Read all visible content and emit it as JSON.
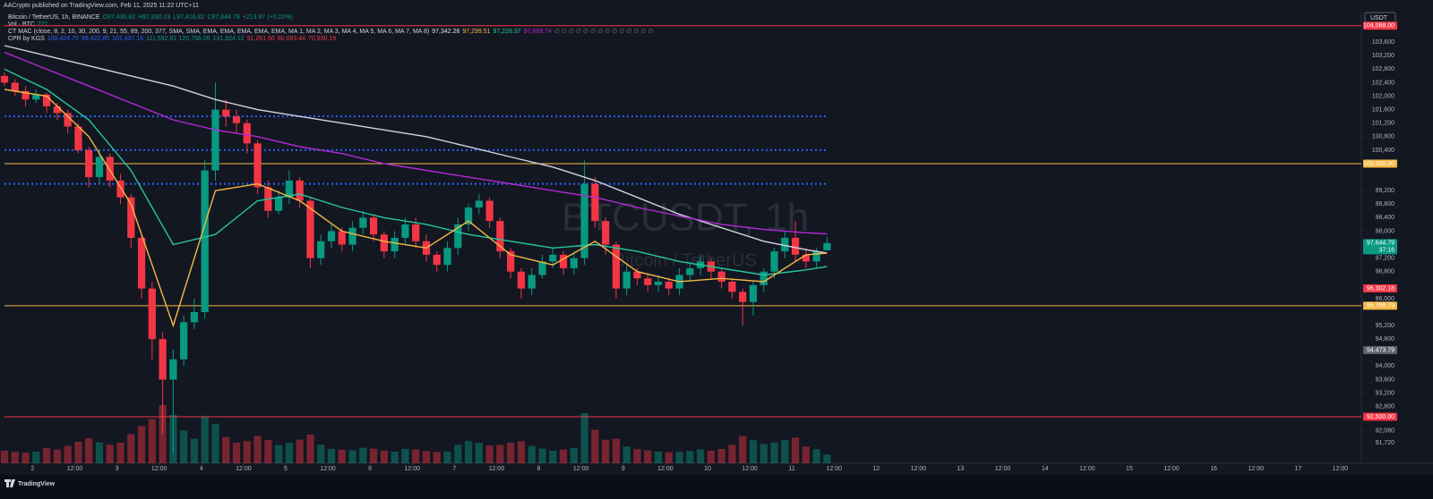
{
  "header": {
    "publisher": "AACrypto published on TradingView.com, Feb 11, 2025 11:22 UTC+11",
    "brand": "TradingView",
    "currency": "USDT"
  },
  "chart_data": {
    "type": "candlestick",
    "symbol": "Bitcoin / TetherUS, 1h, BINANCE",
    "ohlc_text": [
      "O97,430.82",
      "H97,830.19",
      "L97,416.82",
      "C97,644.79",
      "+213.97 (+0.22%)"
    ],
    "volume_label": "Vol · BTC",
    "volume_last": 221,
    "indicators": [
      {
        "name": "CT MAC (close, 8, 2, 10, 30, 200, 9, 21, 55, 89, 200, 377, SMA, SMA, EMA, EMA, EMA, EMA, EMA, MA 1, MA 2, MA 3, MA 4, MA 5, MA 6, MA 7, MA 8)",
        "readouts": [
          "97,342.26",
          "97,299.51",
          "97,226.37",
          "97,669.74",
          "∅ ∅ ∅ ∅ ∅ ∅ ∅ ∅ ∅ ∅ ∅ ∅ ∅ ∅"
        ],
        "readout_colors": [
          "#e0e3eb",
          "#f5b843",
          "#26c6a0",
          "#c026d3",
          "#6a6d78"
        ]
      },
      {
        "name": "CPR by KGS",
        "readouts": [
          "100,424.75",
          "99,422.85",
          "101,437.16",
          "111,592.81",
          "120,756.06",
          "131,924.12",
          "91,261.50",
          "80,093.44",
          "70,930.19"
        ],
        "readout_colors": [
          "#2962ff",
          "#2962ff",
          "#2962ff",
          "#089981",
          "#089981",
          "#089981",
          "#f23645",
          "#f23645",
          "#f23645"
        ]
      }
    ],
    "watermark": [
      "BTCUSDT, 1h",
      "Bitcoin / TetherUS"
    ],
    "up_color": "#089981",
    "down_color": "#f23645",
    "x": [
      -8,
      -5,
      -2,
      1,
      4,
      7,
      10,
      13,
      16,
      19,
      22,
      25,
      28,
      31,
      34,
      37,
      40,
      43,
      46,
      49,
      52,
      55,
      58,
      61,
      64,
      67,
      70,
      73,
      76,
      79,
      82,
      85,
      88,
      91,
      94,
      97,
      100,
      103,
      106,
      109,
      112,
      115,
      118,
      121,
      124,
      127,
      130,
      133,
      136,
      139,
      142,
      145,
      148,
      151,
      154,
      157,
      160,
      163,
      166,
      169,
      172,
      175,
      178,
      181,
      184,
      187,
      190,
      193,
      196,
      199,
      202,
      205,
      208,
      211,
      214,
      217,
      220,
      223,
      226
    ],
    "open": [
      102600,
      102400,
      102150,
      101900,
      102050,
      101700,
      101500,
      101100,
      100400,
      99600,
      100200,
      99500,
      99000,
      97800,
      96300,
      94800,
      93600,
      94200,
      95300,
      95600,
      99800,
      101600,
      101400,
      101200,
      100600,
      99300,
      98600,
      99000,
      99500,
      98900,
      97200,
      97700,
      98000,
      97600,
      98100,
      98400,
      97900,
      97400,
      97800,
      98200,
      97700,
      97300,
      97000,
      97500,
      98200,
      98700,
      98900,
      98300,
      97400,
      96800,
      96300,
      96700,
      97100,
      97300,
      96900,
      97200,
      99400,
      98300,
      97600,
      96300,
      96800,
      96600,
      96400,
      96500,
      96300,
      96700,
      96900,
      97100,
      96800,
      96500,
      96200,
      95900,
      96400,
      96800,
      97400,
      97800,
      97300,
      97100,
      97430.82
    ],
    "high": [
      102700,
      102500,
      102300,
      102200,
      102100,
      101800,
      101600,
      101200,
      100500,
      100400,
      100300,
      99700,
      99100,
      97900,
      96500,
      95000,
      94500,
      95500,
      96000,
      100100,
      102400,
      101900,
      101600,
      101300,
      100700,
      99500,
      99200,
      99800,
      99600,
      99000,
      97900,
      98200,
      98100,
      98300,
      98600,
      98500,
      98000,
      98000,
      98400,
      98400,
      97900,
      97400,
      97700,
      98400,
      98800,
      99100,
      99000,
      98400,
      97500,
      96900,
      96900,
      97300,
      97500,
      97400,
      97400,
      100100,
      99600,
      98400,
      97700,
      97000,
      96900,
      96700,
      96700,
      96600,
      96900,
      97100,
      97300,
      97200,
      96900,
      96600,
      96300,
      96500,
      96900,
      97500,
      98000,
      98300,
      97500,
      97500,
      97830.19
    ],
    "low": [
      102300,
      102000,
      101700,
      101800,
      101500,
      101300,
      100900,
      100300,
      99300,
      99400,
      99300,
      98800,
      97500,
      96000,
      94200,
      92000,
      91400,
      94000,
      95100,
      95400,
      99500,
      101100,
      100900,
      100300,
      99100,
      98400,
      98500,
      98800,
      98700,
      96900,
      97000,
      97500,
      97400,
      97400,
      97900,
      97700,
      97200,
      97200,
      97600,
      97500,
      97100,
      96800,
      96800,
      97300,
      98000,
      98500,
      98100,
      97200,
      96600,
      96000,
      96100,
      96600,
      96900,
      96700,
      96700,
      97000,
      98100,
      97300,
      96000,
      96100,
      96400,
      96200,
      96200,
      96100,
      96100,
      96500,
      96700,
      96600,
      96300,
      96000,
      95200,
      95500,
      96200,
      96600,
      97200,
      97100,
      96900,
      96900,
      97416.82
    ],
    "close": [
      102400,
      102150,
      101900,
      102050,
      101700,
      101500,
      101100,
      100400,
      99600,
      100200,
      99500,
      99000,
      97800,
      96300,
      94800,
      93600,
      94200,
      95300,
      95600,
      99800,
      101600,
      101400,
      101200,
      100600,
      99300,
      98600,
      99000,
      99500,
      98900,
      97200,
      97700,
      98000,
      97600,
      98100,
      98400,
      97900,
      97400,
      97800,
      98200,
      97700,
      97300,
      97000,
      97500,
      98200,
      98700,
      98900,
      98300,
      97400,
      96800,
      96300,
      96700,
      97100,
      97300,
      96900,
      97200,
      99400,
      98300,
      97600,
      96300,
      96800,
      96600,
      96400,
      96500,
      96300,
      96700,
      96900,
      97100,
      96800,
      96500,
      96200,
      95900,
      96400,
      96800,
      97400,
      97800,
      97300,
      97100,
      97400,
      97644.79
    ],
    "volume": [
      4200,
      3800,
      3500,
      3900,
      5100,
      4600,
      5800,
      7200,
      8400,
      7000,
      6200,
      6900,
      9800,
      12500,
      14800,
      19500,
      16200,
      11000,
      8200,
      15800,
      13200,
      8800,
      6900,
      7400,
      9200,
      7800,
      6100,
      6800,
      7900,
      9600,
      6200,
      4800,
      4500,
      4300,
      5200,
      4900,
      4200,
      3900,
      4800,
      4600,
      4100,
      3800,
      3900,
      6200,
      7400,
      6800,
      5900,
      6100,
      6900,
      7400,
      5800,
      4900,
      4200,
      4600,
      5100,
      16800,
      11200,
      7900,
      8200,
      5600,
      4700,
      4300,
      3900,
      3700,
      3800,
      4100,
      4600,
      4200,
      4800,
      6200,
      9100,
      7700,
      6400,
      6900,
      7800,
      8600,
      5600,
      4700,
      2900
    ],
    "ma": [
      {
        "color": "#d1d4dc",
        "x": [
          -8,
          4,
          16,
          28,
          40,
          52,
          64,
          76,
          88,
          100,
          112,
          124,
          136,
          148,
          160,
          172,
          184,
          196,
          208,
          220,
          226
        ],
        "values": [
          103500,
          103200,
          102900,
          102600,
          102300,
          101900,
          101600,
          101400,
          101200,
          101000,
          100800,
          100500,
          100200,
          99900,
          99500,
          99000,
          98500,
          98100,
          97700,
          97450,
          97350
        ]
      },
      {
        "color": "#b42ad6",
        "x": [
          -8,
          4,
          16,
          28,
          40,
          52,
          64,
          76,
          88,
          100,
          112,
          124,
          136,
          148,
          160,
          172,
          184,
          196,
          208,
          220,
          226
        ],
        "values": [
          103300,
          102800,
          102300,
          101800,
          101300,
          101000,
          100800,
          100500,
          100300,
          100000,
          99800,
          99600,
          99400,
          99200,
          99000,
          98700,
          98450,
          98200,
          98050,
          97950,
          97920
        ]
      },
      {
        "color": "#26c6a0",
        "x": [
          -8,
          4,
          16,
          28,
          40,
          52,
          64,
          76,
          88,
          100,
          112,
          124,
          136,
          148,
          160,
          172,
          184,
          196,
          208,
          220,
          226
        ],
        "values": [
          102800,
          102200,
          101300,
          99800,
          97600,
          97900,
          98900,
          99100,
          98700,
          98400,
          98200,
          97900,
          97700,
          97500,
          97600,
          97400,
          97100,
          96900,
          96700,
          96850,
          96950
        ]
      },
      {
        "color": "#f5b843",
        "x": [
          -8,
          4,
          16,
          28,
          40,
          52,
          64,
          76,
          88,
          100,
          112,
          124,
          136,
          148,
          160,
          172,
          184,
          196,
          208,
          220,
          226
        ],
        "values": [
          102200,
          102000,
          100800,
          98800,
          95200,
          99200,
          99400,
          98900,
          98000,
          97700,
          97500,
          98300,
          97300,
          97000,
          97700,
          96800,
          96500,
          96600,
          96500,
          97300,
          97350
        ]
      }
    ],
    "levels": [
      {
        "value": 104088,
        "label": "104,088.00",
        "color": "#f23645",
        "line": "solid"
      },
      {
        "value": 101400,
        "color": "#2962ff",
        "line": "dotted"
      },
      {
        "value": 100400,
        "color": "#2962ff",
        "line": "dotted"
      },
      {
        "value": 100000,
        "label": "100,000.00",
        "color": "#f5b843",
        "line": "solid"
      },
      {
        "value": 99400,
        "color": "#2962ff",
        "line": "dotted"
      },
      {
        "value": 97644.79,
        "label": "97,644.79",
        "sublabel": "37:16",
        "color": "#089981"
      },
      {
        "value": 96302.18,
        "label": "96,302.18",
        "color": "#f23645"
      },
      {
        "value": 95788.79,
        "label": "95,788.79",
        "color": "#f5b843",
        "line": "solid"
      },
      {
        "value": 94473.79,
        "label": "94,473.79",
        "color": "#5d606b"
      },
      {
        "value": 92500,
        "label": "92,500.00",
        "color": "#f23645",
        "line": "solid"
      }
    ],
    "ylim": [
      91200,
      104400
    ],
    "yticks": [
      {
        "value": 91720,
        "label": "91,720"
      },
      {
        "value": 92080,
        "label": "92,080"
      },
      {
        "value": 92800,
        "label": "92,800"
      },
      {
        "value": 93200,
        "label": "93,200"
      },
      {
        "value": 93600,
        "label": "93,600"
      },
      {
        "value": 94000,
        "label": "94,000"
      },
      {
        "value": 94800,
        "label": "94,800"
      },
      {
        "value": 95200,
        "label": "95,200"
      },
      {
        "value": 96000,
        "label": "96,000"
      },
      {
        "value": 96800,
        "label": "96,800"
      },
      {
        "value": 97200,
        "label": "97,200"
      },
      {
        "value": 98000,
        "label": "98,000"
      },
      {
        "value": 98400,
        "label": "98,400"
      },
      {
        "value": 98800,
        "label": "98,800"
      },
      {
        "value": 99200,
        "label": "99,200"
      },
      {
        "value": 100400,
        "label": "100,400"
      },
      {
        "value": 100800,
        "label": "100,800"
      },
      {
        "value": 101200,
        "label": "101,200"
      },
      {
        "value": 101600,
        "label": "101,600"
      },
      {
        "value": 102000,
        "label": "102,000"
      },
      {
        "value": 102400,
        "label": "102,400"
      },
      {
        "value": 102800,
        "label": "102,800"
      },
      {
        "value": 103200,
        "label": "103,200"
      },
      {
        "value": 103600,
        "label": "103,600"
      }
    ],
    "xlim": [
      -8,
      378
    ],
    "xticks": [
      {
        "value": 0,
        "label": "2"
      },
      {
        "value": 12,
        "label": "12:00"
      },
      {
        "value": 24,
        "label": "3"
      },
      {
        "value": 36,
        "label": "12:00"
      },
      {
        "value": 48,
        "label": "4"
      },
      {
        "value": 60,
        "label": "12:00"
      },
      {
        "value": 72,
        "label": "5"
      },
      {
        "value": 84,
        "label": "12:00"
      },
      {
        "value": 96,
        "label": "6"
      },
      {
        "value": 108,
        "label": "12:00"
      },
      {
        "value": 120,
        "label": "7"
      },
      {
        "value": 132,
        "label": "12:00"
      },
      {
        "value": 144,
        "label": "8"
      },
      {
        "value": 156,
        "label": "12:00"
      },
      {
        "value": 168,
        "label": "9"
      },
      {
        "value": 180,
        "label": "12:00"
      },
      {
        "value": 192,
        "label": "10"
      },
      {
        "value": 204,
        "label": "12:00"
      },
      {
        "value": 216,
        "label": "11"
      },
      {
        "value": 228,
        "label": "12:00"
      },
      {
        "value": 240,
        "label": "12"
      },
      {
        "value": 252,
        "label": "12:00"
      },
      {
        "value": 264,
        "label": "13"
      },
      {
        "value": 276,
        "label": "12:00"
      },
      {
        "value": 288,
        "label": "14"
      },
      {
        "value": 300,
        "label": "12:00"
      },
      {
        "value": 312,
        "label": "15"
      },
      {
        "value": 324,
        "label": "12:00"
      },
      {
        "value": 336,
        "label": "16"
      },
      {
        "value": 348,
        "label": "12:00"
      },
      {
        "value": 360,
        "label": "17"
      },
      {
        "value": 372,
        "label": "12:00"
      }
    ]
  }
}
